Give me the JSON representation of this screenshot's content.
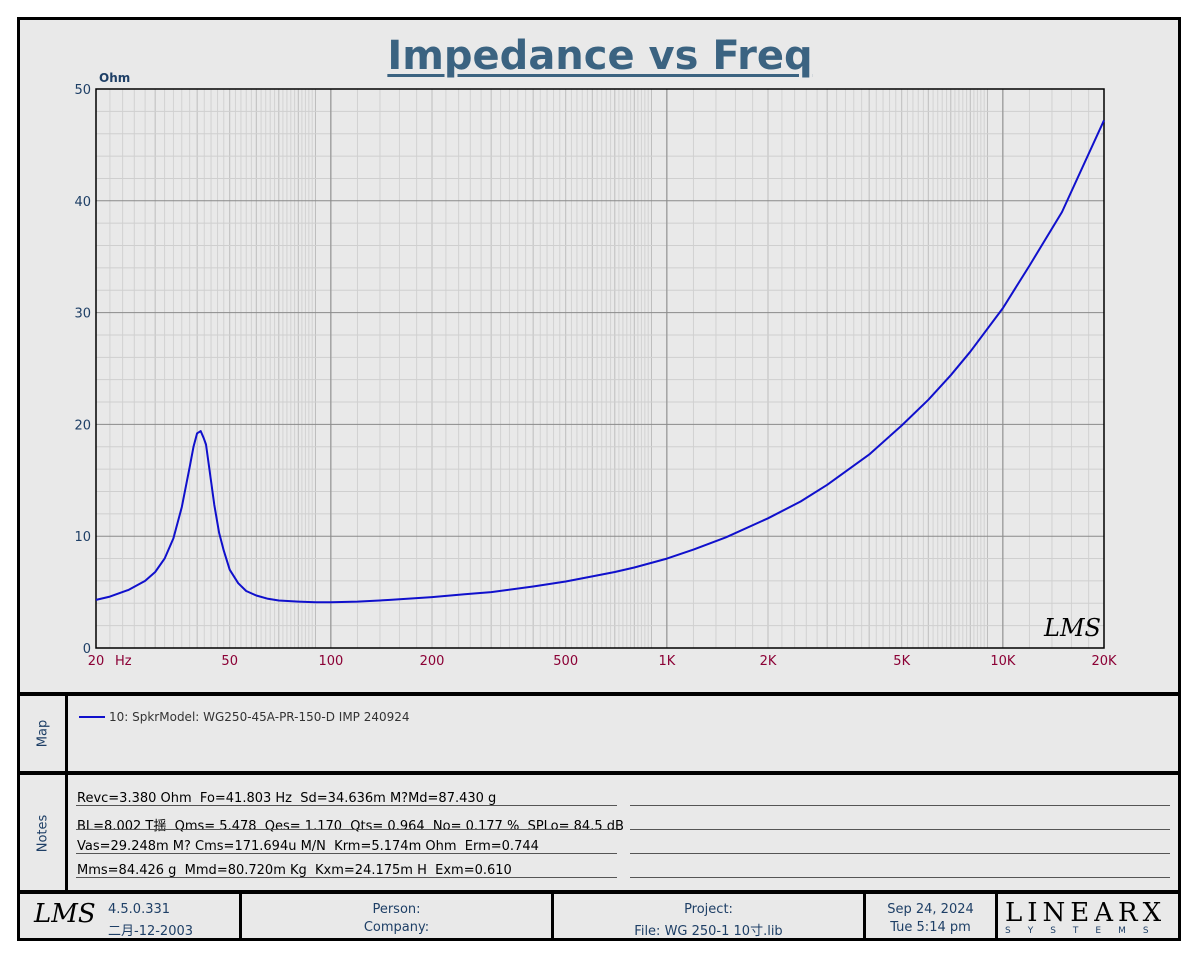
{
  "chart_data": {
    "type": "line",
    "title": "Impedance vs Freq",
    "ylabel": "Ohm",
    "xunit": "Hz",
    "xscale": "log",
    "xlim": [
      20,
      20000
    ],
    "ylim": [
      0,
      50
    ],
    "grid": true,
    "yticks": [
      "0",
      "10",
      "20",
      "30",
      "40",
      "50"
    ],
    "xticks": [
      {
        "v": 20,
        "label": "20"
      },
      {
        "v": 50,
        "label": "50"
      },
      {
        "v": 100,
        "label": "100"
      },
      {
        "v": 200,
        "label": "200"
      },
      {
        "v": 500,
        "label": "500"
      },
      {
        "v": 1000,
        "label": "1K"
      },
      {
        "v": 2000,
        "label": "2K"
      },
      {
        "v": 5000,
        "label": "5K"
      },
      {
        "v": 10000,
        "label": "10K"
      },
      {
        "v": 20000,
        "label": "20K"
      }
    ],
    "series": [
      {
        "name": "10: SpkrModel: WG250-45A-PR-150-D IMP 240924",
        "color": "#1010cc",
        "x": [
          20,
          22,
          25,
          28,
          30,
          32,
          34,
          36,
          38,
          39,
          40,
          41,
          41.8,
          42.5,
          43.5,
          45,
          46.5,
          48,
          50,
          53,
          56,
          60,
          65,
          70,
          80,
          90,
          100,
          120,
          150,
          200,
          250,
          300,
          400,
          500,
          600,
          700,
          800,
          1000,
          1200,
          1500,
          2000,
          2500,
          3000,
          4000,
          5000,
          6000,
          7000,
          8000,
          10000,
          12000,
          15000,
          20000
        ],
        "y": [
          4.3,
          4.6,
          5.2,
          6.0,
          6.8,
          8.0,
          9.8,
          12.6,
          16.2,
          18.0,
          19.2,
          19.4,
          18.8,
          18.2,
          16.0,
          12.8,
          10.3,
          8.7,
          7.0,
          5.8,
          5.1,
          4.7,
          4.4,
          4.25,
          4.15,
          4.1,
          4.1,
          4.15,
          4.3,
          4.55,
          4.8,
          5.0,
          5.5,
          5.95,
          6.4,
          6.8,
          7.2,
          8.0,
          8.8,
          9.9,
          11.6,
          13.1,
          14.6,
          17.3,
          19.9,
          22.2,
          24.4,
          26.5,
          30.4,
          34.2,
          39.0,
          47.2
        ]
      }
    ]
  },
  "watermark": "LMS",
  "map": {
    "label": "Map",
    "entries": [
      {
        "text": "10: SpkrModel: WG250-45A-PR-150-D IMP 240924",
        "color": "#1010cc"
      }
    ]
  },
  "notes": {
    "label": "Notes",
    "lines": [
      "Revc=3.380 Ohm  Fo=41.803 Hz  Sd=34.636m M?Md=87.430 g",
      "BL=8.002 T揺  Qms= 5.478  Qes= 1.170  Qts= 0.964  No= 0.177 %  SPLo= 84.5 dB",
      "Vas=29.248m M? Cms=171.694u M/N  Krm=5.174m Ohm  Erm=0.744",
      "Mms=84.426 g  Mmd=80.720m Kg  Kxm=24.175m H  Exm=0.610"
    ]
  },
  "footer": {
    "logo": "LMS",
    "version": "4.5.0.331",
    "build_date": "二月-12-2003",
    "person_label": "Person:",
    "company_label": "Company:",
    "project_label": "Project:",
    "file_label": "File: WG 250-1 10寸.lib",
    "date": "Sep 24, 2024",
    "time": "Tue  5:14 pm",
    "brand_big": "LINEARX",
    "brand_small": "SYSTEMS"
  }
}
